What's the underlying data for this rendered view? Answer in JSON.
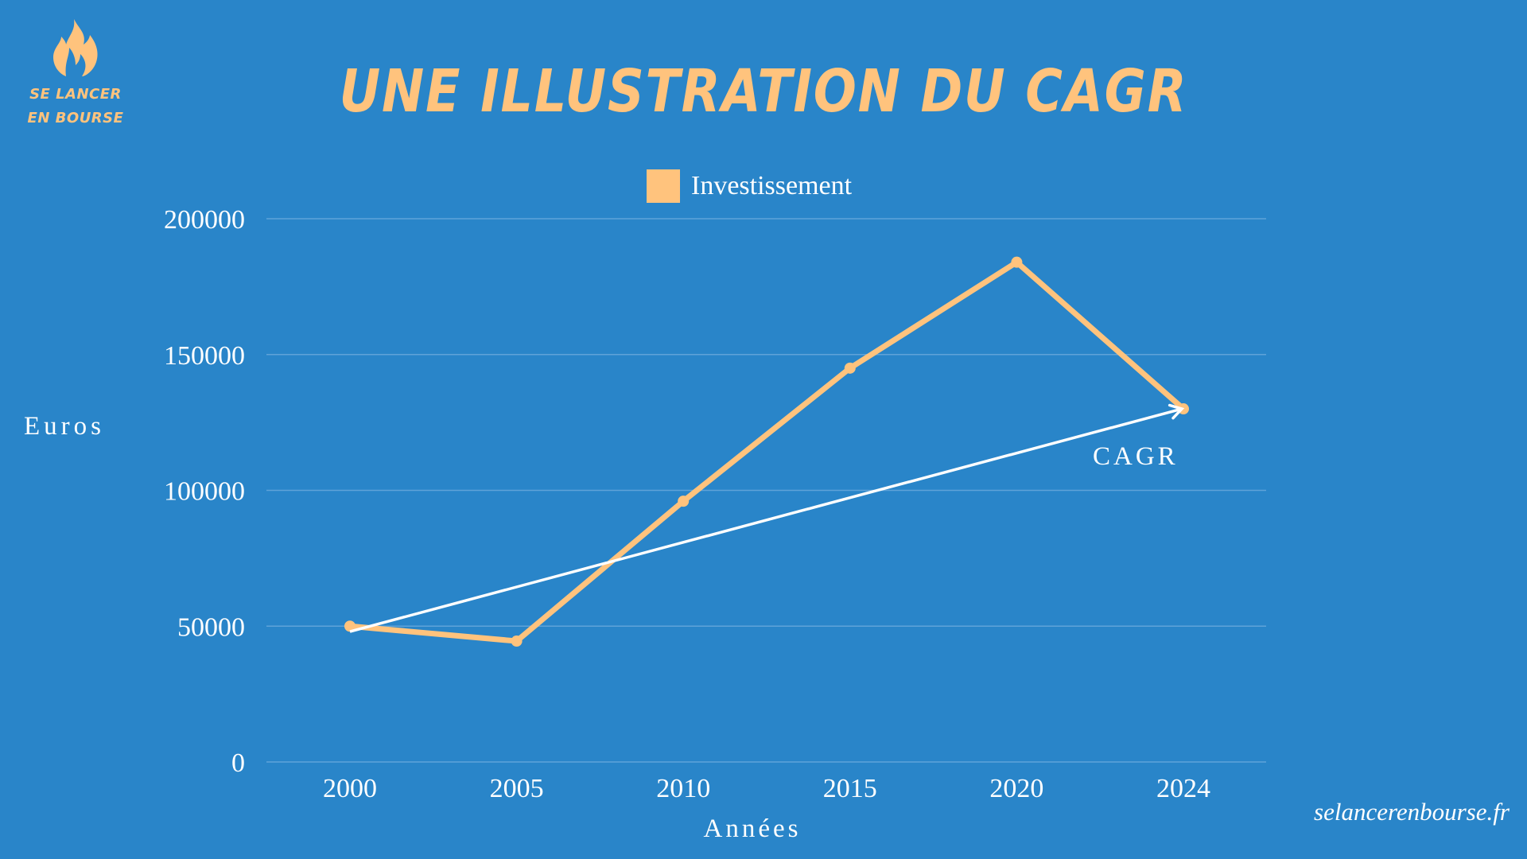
{
  "brand": {
    "logo_icon": "flame-icon",
    "line1": "SE LANCER",
    "line2": "EN BOURSE",
    "color": "#ffc37d"
  },
  "title": "UNE ILLUSTRATION DU CAGR",
  "legend": {
    "label": "Investissement",
    "color": "#ffc37d"
  },
  "axes": {
    "ylabel": "Euros",
    "xlabel": "Années"
  },
  "annotation": {
    "label": "CAGR",
    "color": "#ffffff"
  },
  "watermark": "selancerenbourse.fr",
  "colors": {
    "background": "#2985c9",
    "series": "#ffc37d",
    "gridline": "#5fa3d9",
    "text": "#ffffff"
  },
  "chart_data": {
    "type": "line",
    "title": "UNE ILLUSTRATION DU CAGR",
    "xlabel": "Années",
    "ylabel": "Euros",
    "categories": [
      "2000",
      "2005",
      "2010",
      "2015",
      "2020",
      "2024"
    ],
    "series": [
      {
        "name": "Investissement",
        "values": [
          50000,
          44500,
          96000,
          145000,
          184000,
          130000
        ],
        "color": "#ffc37d"
      }
    ],
    "annotations": [
      {
        "type": "arrow",
        "label": "CAGR",
        "from": {
          "x": "2000",
          "y": 48000
        },
        "to": {
          "x": "2024",
          "y": 130000
        },
        "color": "#ffffff"
      }
    ],
    "yticks": [
      0,
      50000,
      100000,
      150000,
      200000
    ],
    "ylim": [
      0,
      200000
    ],
    "grid": true,
    "legend_position": "top"
  }
}
